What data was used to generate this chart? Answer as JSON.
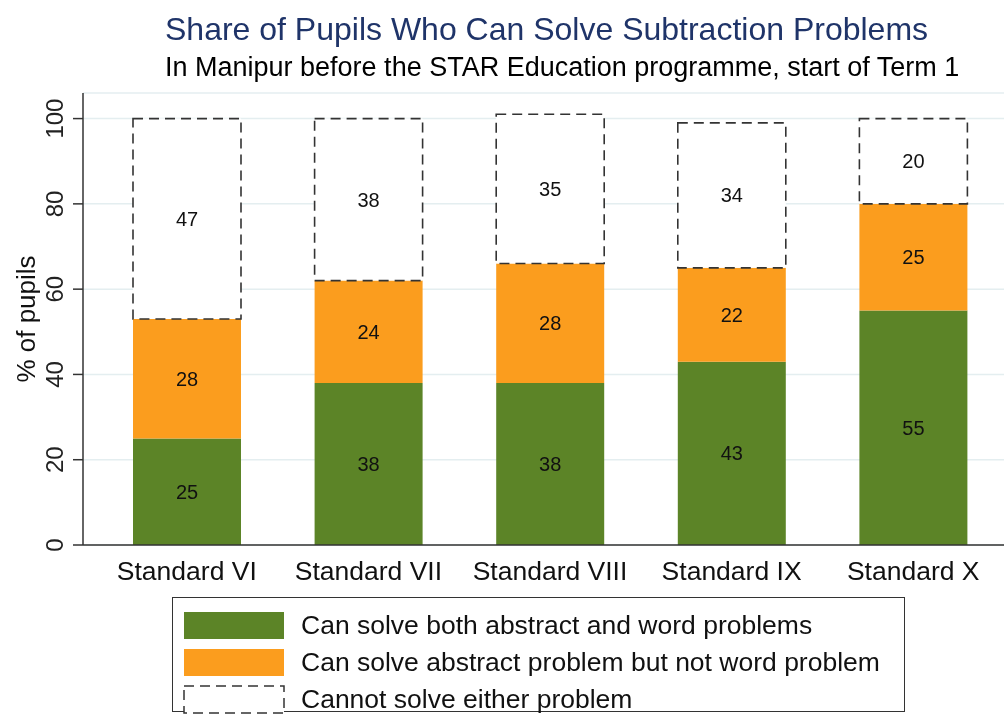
{
  "chart_data": {
    "type": "bar",
    "title": "Share of Pupils Who Can Solve Subtraction Problems",
    "subtitle": "In Manipur before the STAR Education programme, start of Term 1",
    "ylabel": "% of pupils",
    "categories": [
      "Standard VI",
      "Standard VII",
      "Standard VIII",
      "Standard IX",
      "Standard X"
    ],
    "series": [
      {
        "name": "Can solve both abstract and word problems",
        "color": "#5c8427",
        "values": [
          25,
          38,
          38,
          43,
          55
        ]
      },
      {
        "name": "Can solve abstract problem but not word problem",
        "color": "#fb9d1e",
        "values": [
          28,
          24,
          28,
          22,
          25
        ]
      },
      {
        "name": "Cannot solve either problem",
        "color": "#ffffff",
        "line_style": "dashed",
        "values": [
          47,
          38,
          35,
          34,
          20
        ]
      }
    ],
    "stacked": true,
    "ylim": [
      0,
      106
    ],
    "yticks": [
      0,
      20,
      40,
      60,
      80,
      100
    ],
    "grid": "y",
    "legend": "bottom",
    "data_labels": true
  }
}
